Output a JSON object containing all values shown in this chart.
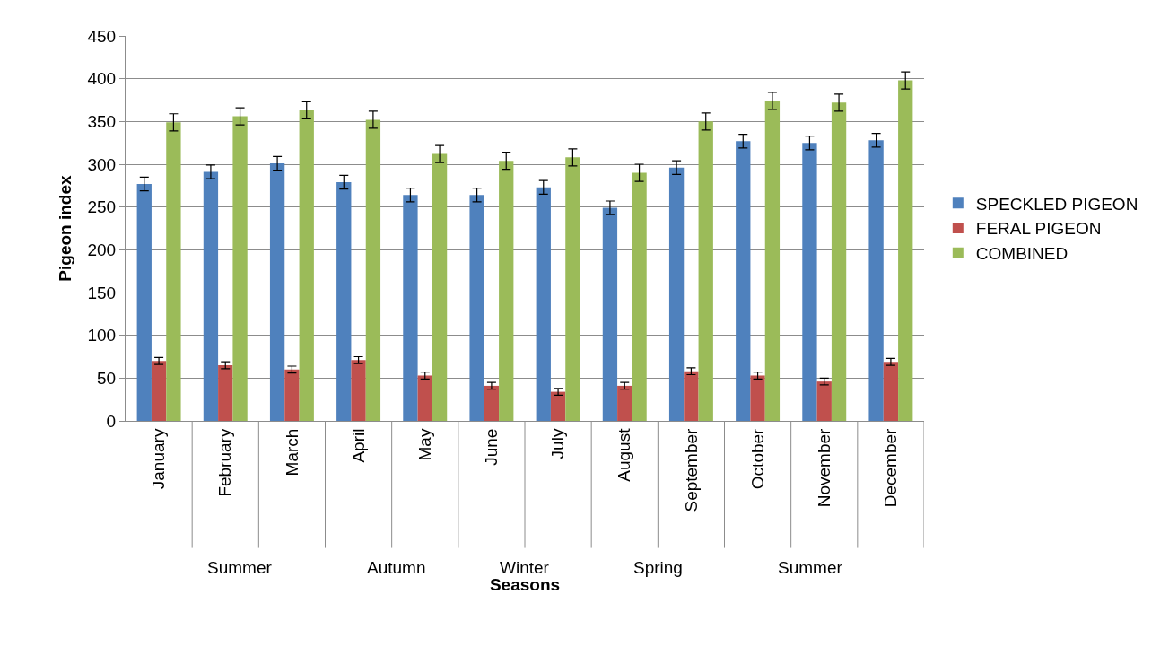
{
  "chart_data": {
    "type": "bar",
    "xlabel": "Seasons",
    "ylabel": "Pigeon index",
    "categories": [
      "January",
      "February",
      "March",
      "April",
      "May",
      "June",
      "July",
      "August",
      "September",
      "October",
      "November",
      "December"
    ],
    "series": [
      {
        "name": "SPECKLED PIGEON",
        "color": "#4f81bd",
        "values": [
          277,
          291,
          301,
          279,
          264,
          264,
          273,
          249,
          296,
          327,
          325,
          328
        ],
        "errors": [
          8,
          8,
          8,
          8,
          8,
          8,
          8,
          8,
          8,
          8,
          8,
          8
        ]
      },
      {
        "name": "FERAL PIGEON",
        "color": "#c0504d",
        "values": [
          70,
          65,
          60,
          71,
          53,
          41,
          34,
          41,
          58,
          53,
          46,
          69
        ],
        "errors": [
          4,
          4,
          4,
          4,
          4,
          4,
          4,
          4,
          4,
          4,
          4,
          4
        ]
      },
      {
        "name": "COMBINED",
        "color": "#9bbb59",
        "values": [
          349,
          356,
          363,
          352,
          312,
          304,
          308,
          290,
          350,
          374,
          372,
          398
        ],
        "errors": [
          10,
          10,
          10,
          10,
          10,
          10,
          10,
          10,
          10,
          10,
          10,
          10
        ]
      }
    ],
    "annotations": [
      "Summer",
      "Autumn",
      "Winter",
      "Spring",
      "Summer"
    ],
    "ylim": [
      0,
      450
    ],
    "yticks": [
      0,
      50,
      100,
      150,
      200,
      250,
      300,
      350,
      400,
      450
    ],
    "grid": "y",
    "legend": "right"
  }
}
